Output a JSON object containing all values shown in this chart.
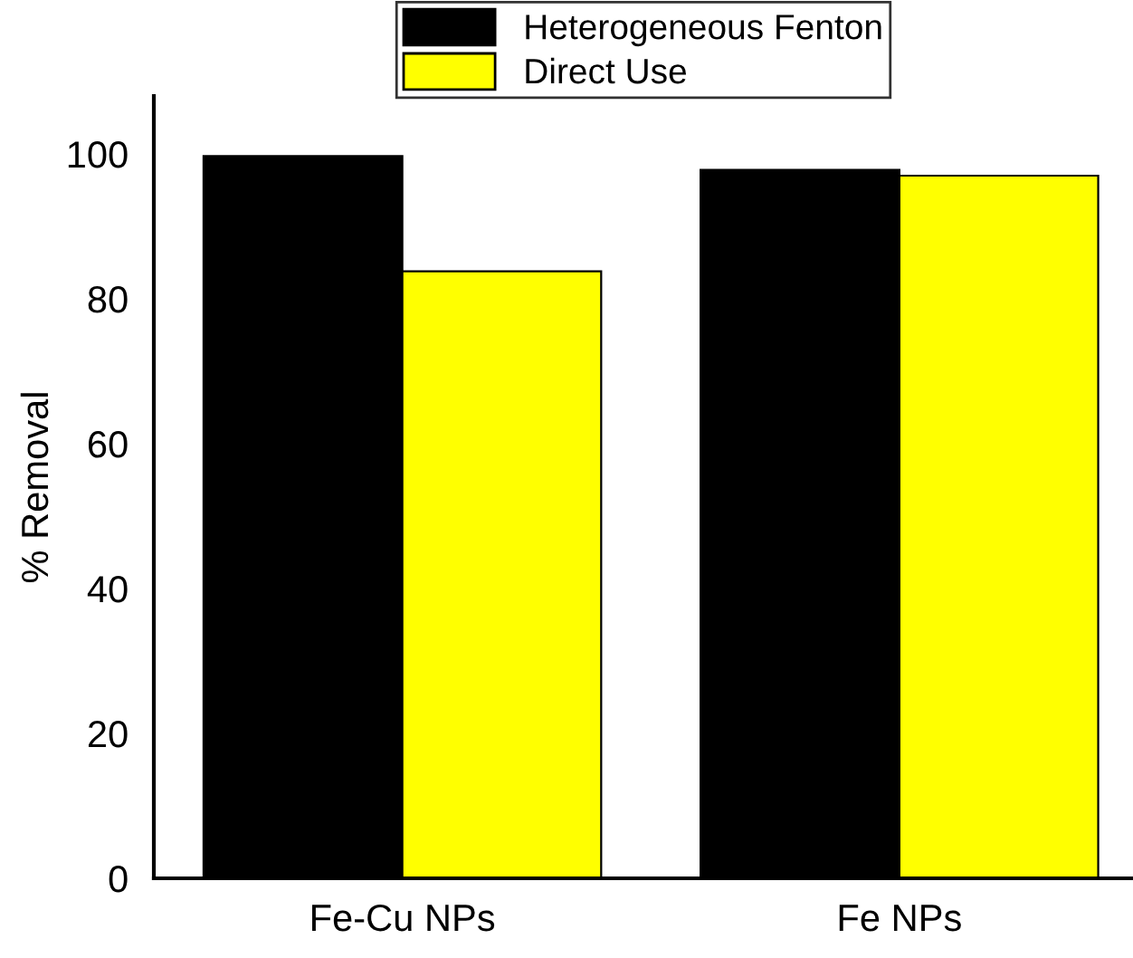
{
  "chart_data": {
    "type": "bar",
    "ylabel": "% Removal",
    "categories": [
      "Fe-Cu NPs",
      "Fe NPs"
    ],
    "series": [
      {
        "name": "Heterogeneous Fenton",
        "color": "#000000",
        "values": [
          99.7,
          97.8
        ]
      },
      {
        "name": "Direct Use",
        "color": "#ffff00",
        "values": [
          83.8,
          97.0
        ]
      }
    ],
    "ylim": [
      0,
      108
    ],
    "yticks": [
      0,
      20,
      40,
      60,
      80,
      100
    ],
    "grid": false,
    "legend": "top"
  }
}
